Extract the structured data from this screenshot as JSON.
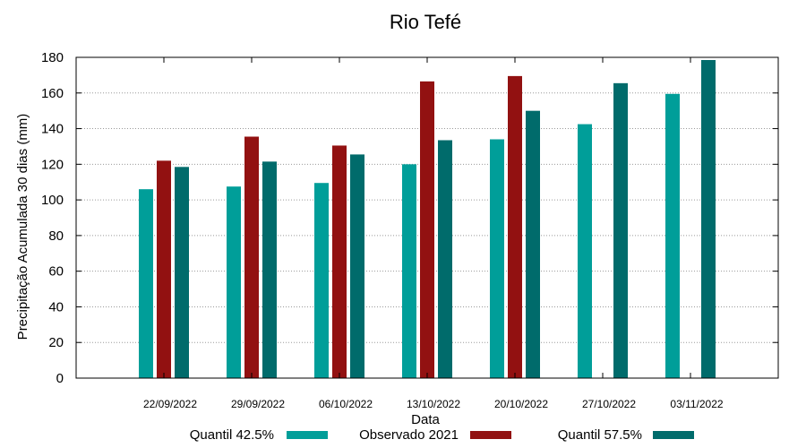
{
  "chart_data": {
    "type": "bar",
    "title": "Rio Tefé",
    "xlabel": "Data",
    "ylabel": "Precipitação Acumulada 30 dias (mm)",
    "ylim": [
      0,
      180
    ],
    "yticks": [
      0,
      20,
      40,
      60,
      80,
      100,
      120,
      140,
      160,
      180
    ],
    "grid": true,
    "legend_position": "bottom",
    "categories": [
      "22/09/2022",
      "29/09/2022",
      "06/10/2022",
      "13/10/2022",
      "20/10/2022",
      "27/10/2022",
      "03/11/2022"
    ],
    "series": [
      {
        "name": "Quantil 42.5%",
        "color": "#009e99",
        "values": [
          106,
          107.5,
          109.5,
          120,
          134,
          142.5,
          159.5
        ]
      },
      {
        "name": "Observado 2021",
        "color": "#921111",
        "values": [
          122,
          135.5,
          130.5,
          166.5,
          169.5,
          null,
          null
        ]
      },
      {
        "name": "Quantil 57.5%",
        "color": "#006b6b",
        "values": [
          118.5,
          121.5,
          125.5,
          133.5,
          150,
          165.5,
          178.5
        ]
      }
    ]
  }
}
